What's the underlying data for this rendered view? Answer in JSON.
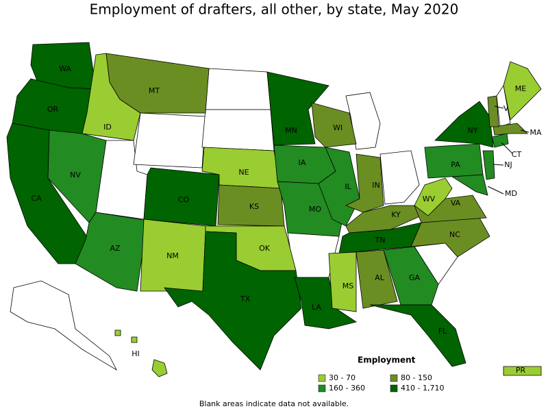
{
  "title": "Employment of drafters, all other, by state, May 2020",
  "states": [
    {
      "label": "WA",
      "color": "#006400"
    },
    {
      "label": "OR",
      "color": "#006400"
    },
    {
      "label": "CA",
      "color": "#006400"
    },
    {
      "label": "ID",
      "color": "#9acd32"
    },
    {
      "label": "NV",
      "color": "#228b22"
    },
    {
      "label": "AZ",
      "color": "#228b22"
    },
    {
      "label": "MT",
      "color": "#6b8e23"
    },
    {
      "label": "CO",
      "color": "#006400"
    },
    {
      "label": "NM",
      "color": "#9acd32"
    },
    {
      "label": "NE",
      "color": "#9acd32"
    },
    {
      "label": "KS",
      "color": "#6b8e23"
    },
    {
      "label": "OK",
      "color": "#9acd32"
    },
    {
      "label": "TX",
      "color": "#006400"
    },
    {
      "label": "MN",
      "color": "#006400"
    },
    {
      "label": "IA",
      "color": "#228b22"
    },
    {
      "label": "MO",
      "color": "#228b22"
    },
    {
      "label": "LA",
      "color": "#006400"
    },
    {
      "label": "WI",
      "color": "#6b8e23"
    },
    {
      "label": "IL",
      "color": "#228b22"
    },
    {
      "label": "IN",
      "color": "#6b8e23"
    },
    {
      "label": "KY",
      "color": "#6b8e23"
    },
    {
      "label": "TN",
      "color": "#006400"
    },
    {
      "label": "MS",
      "color": "#9acd32"
    },
    {
      "label": "AL",
      "color": "#6b8e23"
    },
    {
      "label": "GA",
      "color": "#228b22"
    },
    {
      "label": "FL",
      "color": "#006400"
    },
    {
      "label": "NC",
      "color": "#6b8e23"
    },
    {
      "label": "VA",
      "color": "#6b8e23"
    },
    {
      "label": "WV",
      "color": "#9acd32"
    },
    {
      "label": "PA",
      "color": "#228b22"
    },
    {
      "label": "NY",
      "color": "#006400"
    },
    {
      "label": "MD",
      "color": "#228b22"
    },
    {
      "label": "NJ",
      "color": "#228b22"
    },
    {
      "label": "CT",
      "color": "#228b22"
    },
    {
      "label": "MA",
      "color": "#6b8e23"
    },
    {
      "label": "VT",
      "color": "#6b8e23"
    },
    {
      "label": "ME",
      "color": "#9acd32"
    },
    {
      "label": "HI",
      "color": "#9acd32"
    },
    {
      "label": "PR",
      "color": "#9acd32"
    }
  ],
  "legend": {
    "title": "Employment",
    "items": [
      {
        "label": "30 - 70",
        "color": "#9acd32"
      },
      {
        "label": "80 - 150",
        "color": "#6b8e23"
      },
      {
        "label": "160 - 360",
        "color": "#228b22"
      },
      {
        "label": "410 - 1,710",
        "color": "#006400"
      }
    ]
  },
  "footnote": "Blank areas indicate data not available."
}
